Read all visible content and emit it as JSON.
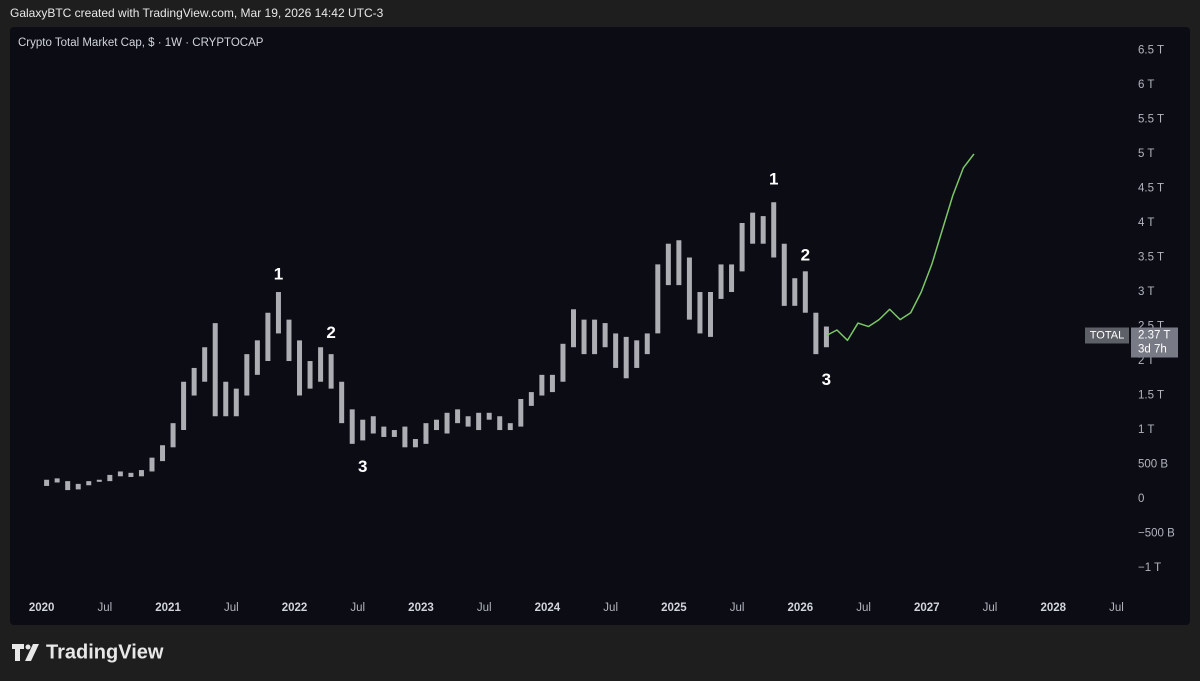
{
  "header": "GalaxyBTC created with TradingView.com, Mar 19, 2026 14:42 UTC-3",
  "footer_brand": "TradingView",
  "chart_data": {
    "type": "candlestick",
    "title": "Crypto Total Market Cap, $ · 1W · CRYPTOCAP",
    "xlim": [
      "2019-10",
      "2028-08"
    ],
    "ylim": [
      -1.39,
      6.84
    ],
    "yticks": [
      {
        "value": -1,
        "label": "−1 T"
      },
      {
        "value": -0.5,
        "label": "−500 B"
      },
      0,
      {
        "value": 0.5,
        "label": "500 B"
      },
      {
        "value": 1,
        "label": "1 T"
      },
      {
        "value": 1.5,
        "label": "1.5 T"
      },
      {
        "value": 2,
        "label": "2 T"
      },
      {
        "value": 2.5,
        "label": "2.5 T"
      },
      {
        "value": 3,
        "label": "3 T"
      },
      {
        "value": 3.5,
        "label": "3.5 T"
      },
      {
        "value": 4,
        "label": "4 T"
      },
      {
        "value": 4.5,
        "label": "4.5 T"
      },
      {
        "value": 5,
        "label": "5 T"
      },
      {
        "value": 5.5,
        "label": "5.5 T"
      },
      {
        "value": 6,
        "label": "6 T"
      },
      {
        "value": 6.5,
        "label": "6.5 T"
      }
    ],
    "xticks": [
      {
        "value": "2020-01",
        "label": "2020"
      },
      {
        "value": "2020-07",
        "label": "Jul"
      },
      {
        "value": "2021-01",
        "label": "2021"
      },
      {
        "value": "2021-07",
        "label": "Jul"
      },
      {
        "value": "2022-01",
        "label": "2022"
      },
      {
        "value": "2022-07",
        "label": "Jul"
      },
      {
        "value": "2023-01",
        "label": "2023"
      },
      {
        "value": "2023-07",
        "label": "Jul"
      },
      {
        "value": "2024-01",
        "label": "2024"
      },
      {
        "value": "2024-07",
        "label": "Jul"
      },
      {
        "value": "2025-01",
        "label": "2025"
      },
      {
        "value": "2025-07",
        "label": "Jul"
      },
      {
        "value": "2026-01",
        "label": "2026"
      },
      {
        "value": "2026-07",
        "label": "Jul"
      },
      {
        "value": "2027-01",
        "label": "2027"
      },
      {
        "value": "2027-07",
        "label": "Jul"
      },
      {
        "value": "2028-01",
        "label": "2028"
      },
      {
        "value": "2028-07",
        "label": "Jul"
      }
    ],
    "candles": {
      "color": "#c9cbd1",
      "x": [
        "2020-01",
        "2020-02",
        "2020-03",
        "2020-04",
        "2020-05",
        "2020-06",
        "2020-07",
        "2020-08",
        "2020-09",
        "2020-10",
        "2020-11",
        "2020-12",
        "2021-01",
        "2021-02",
        "2021-03",
        "2021-04",
        "2021-05",
        "2021-06",
        "2021-07",
        "2021-08",
        "2021-09",
        "2021-10",
        "2021-11",
        "2021-12",
        "2022-01",
        "2022-02",
        "2022-03",
        "2022-04",
        "2022-05",
        "2022-06",
        "2022-07",
        "2022-08",
        "2022-09",
        "2022-10",
        "2022-11",
        "2022-12",
        "2023-01",
        "2023-02",
        "2023-03",
        "2023-04",
        "2023-05",
        "2023-06",
        "2023-07",
        "2023-08",
        "2023-09",
        "2023-10",
        "2023-11",
        "2023-12",
        "2024-01",
        "2024-02",
        "2024-03",
        "2024-04",
        "2024-05",
        "2024-06",
        "2024-07",
        "2024-08",
        "2024-09",
        "2024-10",
        "2024-11",
        "2024-12",
        "2025-01",
        "2025-02",
        "2025-03",
        "2025-04",
        "2025-05",
        "2025-06",
        "2025-07",
        "2025-08",
        "2025-09",
        "2025-10",
        "2025-11",
        "2025-12",
        "2026-01",
        "2026-02",
        "2026-03"
      ],
      "high": [
        0.28,
        0.3,
        0.26,
        0.22,
        0.26,
        0.28,
        0.35,
        0.4,
        0.38,
        0.42,
        0.6,
        0.78,
        1.1,
        1.7,
        1.9,
        2.2,
        2.55,
        1.7,
        1.6,
        2.1,
        2.3,
        2.7,
        3.0,
        2.6,
        2.3,
        2.0,
        2.2,
        2.1,
        1.7,
        1.3,
        1.15,
        1.2,
        1.05,
        1.0,
        1.05,
        0.87,
        1.1,
        1.15,
        1.25,
        1.3,
        1.2,
        1.25,
        1.25,
        1.2,
        1.1,
        1.45,
        1.55,
        1.8,
        1.8,
        2.25,
        2.75,
        2.6,
        2.6,
        2.55,
        2.4,
        2.35,
        2.3,
        2.4,
        3.4,
        3.7,
        3.75,
        3.5,
        3.0,
        3.0,
        3.4,
        3.4,
        4.0,
        4.15,
        4.1,
        4.3,
        3.7,
        3.2,
        3.3,
        2.7,
        2.5
      ],
      "low": [
        0.19,
        0.24,
        0.13,
        0.14,
        0.2,
        0.25,
        0.26,
        0.33,
        0.32,
        0.33,
        0.4,
        0.55,
        0.75,
        1.0,
        1.5,
        1.7,
        1.2,
        1.2,
        1.2,
        1.5,
        1.8,
        2.0,
        2.4,
        2.0,
        1.5,
        1.6,
        1.7,
        1.6,
        1.1,
        0.8,
        0.85,
        0.95,
        0.9,
        0.9,
        0.75,
        0.75,
        0.8,
        1.0,
        0.95,
        1.1,
        1.05,
        1.0,
        1.15,
        1.0,
        1.0,
        1.05,
        1.35,
        1.5,
        1.55,
        1.7,
        2.2,
        2.1,
        2.1,
        2.2,
        1.9,
        1.75,
        1.9,
        2.1,
        2.4,
        3.1,
        3.1,
        2.6,
        2.4,
        2.35,
        2.9,
        3.0,
        3.3,
        3.7,
        3.7,
        3.5,
        2.8,
        2.8,
        2.7,
        2.1,
        2.2
      ]
    },
    "projection": {
      "color": "#7cc768",
      "x": [
        "2026-03",
        "2026-04",
        "2026-05",
        "2026-06",
        "2026-07",
        "2026-08",
        "2026-09",
        "2026-10",
        "2026-11",
        "2026-12",
        "2027-01",
        "2027-02",
        "2027-03",
        "2027-04",
        "2027-05"
      ],
      "values": [
        2.37,
        2.45,
        2.3,
        2.55,
        2.5,
        2.6,
        2.75,
        2.6,
        2.7,
        3.0,
        3.4,
        3.9,
        4.4,
        4.8,
        5.0
      ]
    },
    "annotations": [
      {
        "text": "1",
        "x": "2021-11",
        "y": 3.25
      },
      {
        "text": "2",
        "x": "2022-04",
        "y": 2.4
      },
      {
        "text": "3",
        "x": "2022-07",
        "y": 0.46
      },
      {
        "text": "1",
        "x": "2025-10",
        "y": 4.62
      },
      {
        "text": "2",
        "x": "2026-01",
        "y": 3.52
      },
      {
        "text": "3",
        "x": "2026-03",
        "y": 1.72
      }
    ],
    "symbol": "TOTAL",
    "last_price": 2.37,
    "last_price_label": "2.37 T",
    "countdown": "3d 7h"
  }
}
